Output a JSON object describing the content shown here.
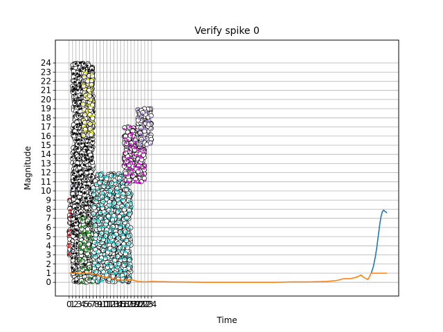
{
  "chart_data": {
    "type": "line",
    "title": "Verify spike 0",
    "xlabel": "Time",
    "ylabel": "Magnitude",
    "grid": true,
    "xlim": [
      -4,
      96
    ],
    "ylim": [
      -1.5,
      26.5
    ],
    "x_ticks": [
      "0",
      "1",
      "2",
      "3",
      "4",
      "5",
      "6",
      "7",
      "8",
      "9",
      "10",
      "11",
      "12",
      "13",
      "14",
      "15",
      "16",
      "17",
      "18",
      "19",
      "20",
      "21",
      "22",
      "23",
      "24"
    ],
    "y_ticks": [
      "0",
      "1",
      "2",
      "3",
      "4",
      "5",
      "6",
      "7",
      "8",
      "9",
      "10",
      "11",
      "12",
      "13",
      "14",
      "15",
      "16",
      "17",
      "18",
      "19",
      "20",
      "21",
      "22",
      "23",
      "24"
    ],
    "scatter_clusters": [
      {
        "name": "red",
        "color": "#e41a1c",
        "x_range": [
          0,
          2
        ],
        "y_range": [
          3,
          9
        ]
      },
      {
        "name": "blue",
        "color": "#2020ff",
        "x_range": [
          1,
          4
        ],
        "y_range": [
          3,
          12
        ]
      },
      {
        "name": "black",
        "color": "#111111",
        "x_range": [
          1,
          7
        ],
        "y_range": [
          0,
          24
        ]
      },
      {
        "name": "yellow",
        "color": "#e8e820",
        "x_range": [
          4,
          7
        ],
        "y_range": [
          16,
          23
        ]
      },
      {
        "name": "green",
        "color": "#2e9e2e",
        "x_range": [
          3,
          8
        ],
        "y_range": [
          0,
          7
        ]
      },
      {
        "name": "cyan",
        "color": "#30d5d5",
        "x_range": [
          7,
          18
        ],
        "y_range": [
          0,
          12
        ]
      },
      {
        "name": "magenta",
        "color": "#e020e0",
        "x_range": [
          16,
          22
        ],
        "y_range": [
          11,
          17
        ]
      },
      {
        "name": "purple",
        "color": "#b090e0",
        "x_range": [
          20,
          24
        ],
        "y_range": [
          15,
          19
        ]
      }
    ],
    "series": [
      {
        "color": "#1f77b4",
        "x": [
          88,
          88.6,
          89.2,
          89.6,
          90,
          90.4,
          90.8,
          91.2,
          91.6,
          92.2,
          92.6
        ],
        "y": [
          1,
          1.7,
          2.8,
          3.8,
          4.9,
          6.1,
          7.1,
          7.7,
          7.9,
          7.7,
          7.6
        ]
      },
      {
        "color": "#ff7f0e",
        "x": [
          0,
          3,
          6,
          8,
          10,
          12,
          14,
          16,
          18,
          20,
          22,
          24,
          30,
          40,
          50,
          60,
          65,
          70,
          75,
          78,
          80,
          82,
          84,
          85,
          86,
          87,
          88,
          89,
          90,
          92.6
        ],
        "y": [
          1,
          1,
          1,
          0.8,
          0.6,
          0.5,
          0.3,
          0.2,
          0.3,
          0.1,
          0.05,
          0.1,
          0.05,
          0,
          0,
          0,
          0.05,
          0.05,
          0.1,
          0.2,
          0.4,
          0.4,
          0.6,
          0.8,
          0.5,
          0.3,
          1,
          1,
          1,
          1
        ]
      }
    ]
  }
}
